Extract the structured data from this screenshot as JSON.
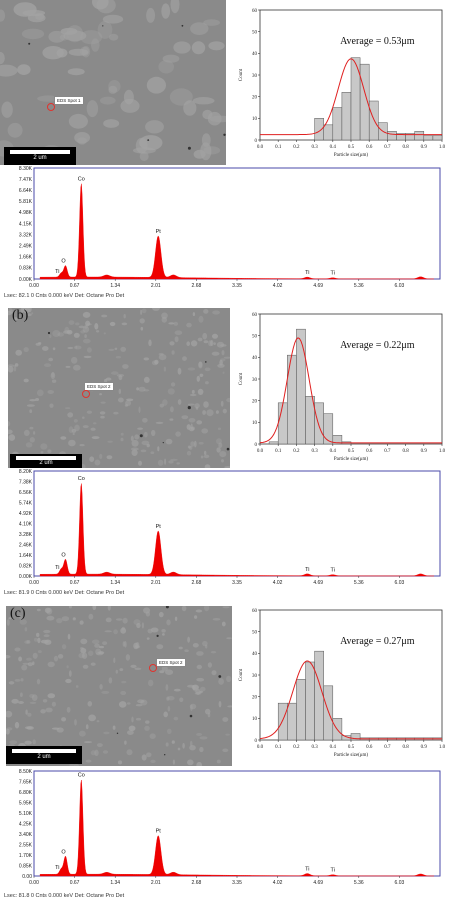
{
  "panels": [
    {
      "label": "",
      "sem": {
        "scale_label": "2 um",
        "eds_spot_label": "EDS Spot 1"
      },
      "histogram": {
        "annotation": "Average = 0.53μm",
        "ylabel": "Count",
        "xlabel": "Particle size(μm)"
      },
      "eds": {
        "footer": "Lsec: 82.1   0 Cnts   0.000 keV  Det: Octane Pro Det"
      }
    },
    {
      "label": "(b)",
      "sem": {
        "scale_label": "2 um",
        "eds_spot_label": "EDS Spot 2"
      },
      "histogram": {
        "annotation": "Average = 0.22μm",
        "ylabel": "Count",
        "xlabel": "Particle size(μm)"
      },
      "eds": {
        "footer": "Lsec: 81.9   0 Cnts   0.000 keV  Det: Octane Pro Det"
      }
    },
    {
      "label": "(c)",
      "sem": {
        "scale_label": "2 um",
        "eds_spot_label": "EDS Spot 2"
      },
      "histogram": {
        "annotation": "Average = 0.27μm",
        "ylabel": "Count",
        "xlabel": "Particle size(μm)"
      },
      "eds": {
        "footer": "Lsec: 81.8   0 Cnts   0.000 keV  Det: Octane Pro Det"
      }
    }
  ],
  "chart_data": [
    {
      "type": "bar",
      "title": "",
      "annotation": "Average = 0.53μm",
      "xlabel": "Particle size(μm)",
      "ylabel": "Count",
      "xlim": [
        0.0,
        1.0
      ],
      "ylim": [
        0,
        60
      ],
      "xticks": [
        "0.0",
        "0.1",
        "0.2",
        "0.3",
        "0.4",
        "0.5",
        "0.6",
        "0.7",
        "0.8",
        "0.9",
        "1.0"
      ],
      "yticks": [
        "0",
        "10",
        "20",
        "30",
        "40",
        "50",
        "60"
      ],
      "bin_width": 0.05,
      "x": [
        0.3,
        0.35,
        0.4,
        0.45,
        0.5,
        0.55,
        0.6,
        0.65,
        0.7,
        0.75,
        0.8,
        0.85,
        0.9,
        0.95
      ],
      "values": [
        10,
        7,
        15,
        22,
        38,
        35,
        18,
        8,
        4,
        3,
        3,
        4,
        2,
        2
      ],
      "fit_curve": {
        "center": 0.5,
        "width": 0.07,
        "peak": 37.5,
        "baseline": 2.5
      },
      "colors": {
        "bars": "#c8c8c8",
        "fit": "#e02020"
      }
    },
    {
      "type": "bar",
      "title": "",
      "annotation": "Average = 0.22μm",
      "xlabel": "Particle size(μm)",
      "ylabel": "Count",
      "xlim": [
        0.0,
        1.0
      ],
      "ylim": [
        0,
        60
      ],
      "xticks": [
        "0.0",
        "0.1",
        "0.2",
        "0.3",
        "0.4",
        "0.5",
        "0.6",
        "0.7",
        "0.8",
        "0.9",
        "1.0"
      ],
      "yticks": [
        "0",
        "10",
        "20",
        "30",
        "40",
        "50",
        "60"
      ],
      "bin_width": 0.05,
      "x": [
        0.05,
        0.1,
        0.15,
        0.2,
        0.25,
        0.3,
        0.35,
        0.4,
        0.45
      ],
      "values": [
        1,
        19,
        41,
        53,
        22,
        19,
        14,
        4,
        1
      ],
      "fit_curve": {
        "center": 0.21,
        "width": 0.06,
        "peak": 49,
        "baseline": 0.5
      },
      "colors": {
        "bars": "#c8c8c8",
        "fit": "#e02020"
      }
    },
    {
      "type": "bar",
      "title": "",
      "annotation": "Average = 0.27μm",
      "xlabel": "Particle size(μm)",
      "ylabel": "Count",
      "xlim": [
        0.0,
        1.0
      ],
      "ylim": [
        0,
        60
      ],
      "xticks": [
        "0.0",
        "0.1",
        "0.2",
        "0.3",
        "0.4",
        "0.5",
        "0.6",
        "0.7",
        "0.8",
        "0.9",
        "1.0"
      ],
      "yticks": [
        "0",
        "10",
        "20",
        "30",
        "40",
        "50",
        "60"
      ],
      "bin_width": 0.05,
      "x": [
        0.1,
        0.15,
        0.2,
        0.25,
        0.3,
        0.35,
        0.4,
        0.45,
        0.5,
        0.55,
        0.6,
        0.65,
        0.7,
        0.75,
        0.8,
        0.85,
        0.9,
        0.95
      ],
      "values": [
        17,
        17,
        28,
        36,
        41,
        25,
        10,
        2,
        3,
        1,
        1,
        1,
        1,
        1,
        1,
        1,
        1,
        1
      ],
      "fit_curve": {
        "center": 0.26,
        "width": 0.08,
        "peak": 36.5,
        "baseline": 0.5
      },
      "colors": {
        "bars": "#c8c8c8",
        "fit": "#e02020"
      }
    },
    {
      "type": "area",
      "title": "",
      "xlabel": "keV",
      "ylabel": "",
      "xlim": [
        0.0,
        6.7
      ],
      "ylim": [
        0,
        8300
      ],
      "xticks": [
        "0.00",
        "0.67",
        "1.34",
        "2.01",
        "2.68",
        "3.35",
        "4.02",
        "4.69",
        "5.36",
        "6.03"
      ],
      "yticks": [
        "0.00K",
        "0.83K",
        "1.66K",
        "2.49K",
        "3.32K",
        "4.15K",
        "4.98K",
        "5.81K",
        "6.64K",
        "7.47K",
        "8.30K"
      ],
      "peaks": [
        {
          "label": "O",
          "keV": 0.52,
          "counts": 850
        },
        {
          "label": "Ti",
          "keV": 0.45,
          "counts": 300
        },
        {
          "label": "Co",
          "keV": 0.78,
          "counts": 7000
        },
        {
          "label": "Pt",
          "keV": 2.05,
          "counts": 3100
        },
        {
          "label": "Ti",
          "keV": 4.51,
          "counts": 120
        },
        {
          "label": "Ti",
          "keV": 4.93,
          "counts": 80
        }
      ],
      "colors": {
        "fill": "#ee0000",
        "frame": "#4a4aa8"
      }
    },
    {
      "type": "area",
      "title": "",
      "xlabel": "keV",
      "ylabel": "",
      "xlim": [
        0.0,
        6.7
      ],
      "ylim": [
        0,
        8200
      ],
      "xticks": [
        "0.00",
        "0.67",
        "1.34",
        "2.01",
        "2.68",
        "3.35",
        "4.02",
        "4.69",
        "5.36",
        "6.03"
      ],
      "yticks": [
        "0.00K",
        "0.82K",
        "1.64K",
        "2.46K",
        "3.28K",
        "4.10K",
        "4.92K",
        "5.74K",
        "6.56K",
        "7.38K",
        "8.20K"
      ],
      "peaks": [
        {
          "label": "O",
          "keV": 0.52,
          "counts": 1150
        },
        {
          "label": "Ti",
          "keV": 0.45,
          "counts": 400
        },
        {
          "label": "Co",
          "keV": 0.78,
          "counts": 7100
        },
        {
          "label": "Pt",
          "keV": 2.05,
          "counts": 3400
        },
        {
          "label": "Ti",
          "keV": 4.51,
          "counts": 150
        },
        {
          "label": "Ti",
          "keV": 4.93,
          "counts": 90
        }
      ],
      "colors": {
        "fill": "#ee0000",
        "frame": "#4a4aa8"
      }
    },
    {
      "type": "area",
      "title": "",
      "xlabel": "keV",
      "ylabel": "",
      "xlim": [
        0.0,
        6.7
      ],
      "ylim": [
        0,
        8500
      ],
      "xticks": [
        "0.00",
        "0.67",
        "1.34",
        "2.01",
        "2.68",
        "3.35",
        "4.02",
        "4.69",
        "5.36",
        "6.03"
      ],
      "yticks": [
        "0.00",
        "0.85K",
        "1.70K",
        "2.55K",
        "3.40K",
        "4.25K",
        "5.10K",
        "5.95K",
        "6.80K",
        "7.65K",
        "8.50K"
      ],
      "peaks": [
        {
          "label": "O",
          "keV": 0.52,
          "counts": 1450
        },
        {
          "label": "Ti",
          "keV": 0.45,
          "counts": 420
        },
        {
          "label": "Co",
          "keV": 0.78,
          "counts": 7650
        },
        {
          "label": "Pt",
          "keV": 2.05,
          "counts": 3150
        },
        {
          "label": "Ti",
          "keV": 4.51,
          "counts": 180
        },
        {
          "label": "Ti",
          "keV": 4.93,
          "counts": 90
        }
      ],
      "colors": {
        "fill": "#ee0000",
        "frame": "#4a4aa8"
      }
    }
  ]
}
